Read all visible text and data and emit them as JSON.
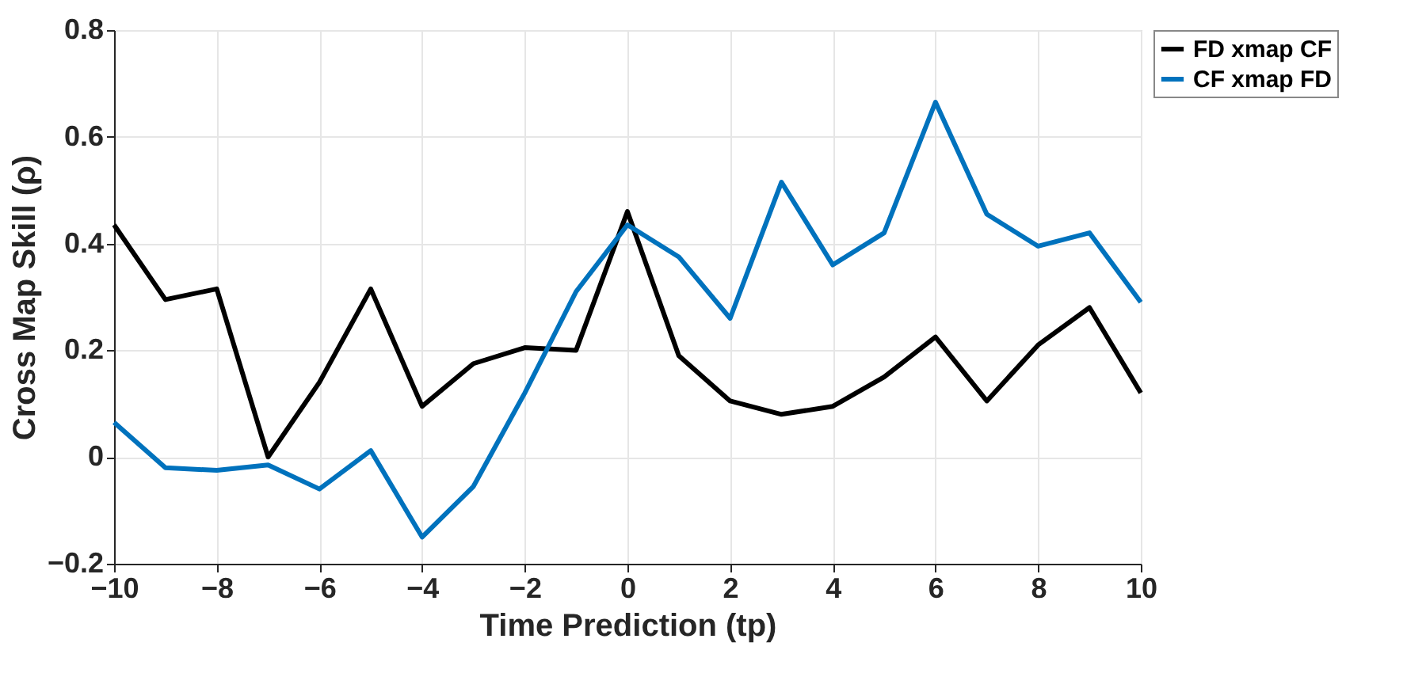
{
  "chart_data": {
    "type": "line",
    "xlabel": "Time Prediction (tp)",
    "ylabel": "Cross Map Skill (ρ)",
    "x": [
      -10,
      -9,
      -8,
      -7,
      -6,
      -5,
      -4,
      -3,
      -2,
      -1,
      0,
      1,
      2,
      3,
      4,
      5,
      6,
      7,
      8,
      9,
      10
    ],
    "series": [
      {
        "name": "FD xmap CF",
        "color": "#000000",
        "values": [
          0.435,
          0.295,
          0.315,
          0.0,
          0.14,
          0.315,
          0.095,
          0.175,
          0.205,
          0.2,
          0.46,
          0.19,
          0.105,
          0.08,
          0.095,
          0.15,
          0.225,
          0.105,
          0.21,
          0.28,
          0.12
        ]
      },
      {
        "name": "CF xmap FD",
        "color": "#0072bd",
        "values": [
          0.065,
          -0.02,
          -0.025,
          -0.015,
          -0.06,
          0.012,
          -0.15,
          -0.055,
          0.12,
          0.31,
          0.435,
          0.375,
          0.26,
          0.515,
          0.36,
          0.42,
          0.665,
          0.455,
          0.395,
          0.42,
          0.29
        ]
      }
    ],
    "xlim": [
      -10,
      10
    ],
    "xticks": [
      -10,
      -8,
      -6,
      -4,
      -2,
      0,
      2,
      4,
      6,
      8,
      10
    ],
    "ylim": [
      -0.2,
      0.8
    ],
    "yticks": [
      -0.2,
      0,
      0.2,
      0.4,
      0.6,
      0.8
    ],
    "grid": true,
    "legend": "top right",
    "marker": "none",
    "line_style": "solid"
  }
}
